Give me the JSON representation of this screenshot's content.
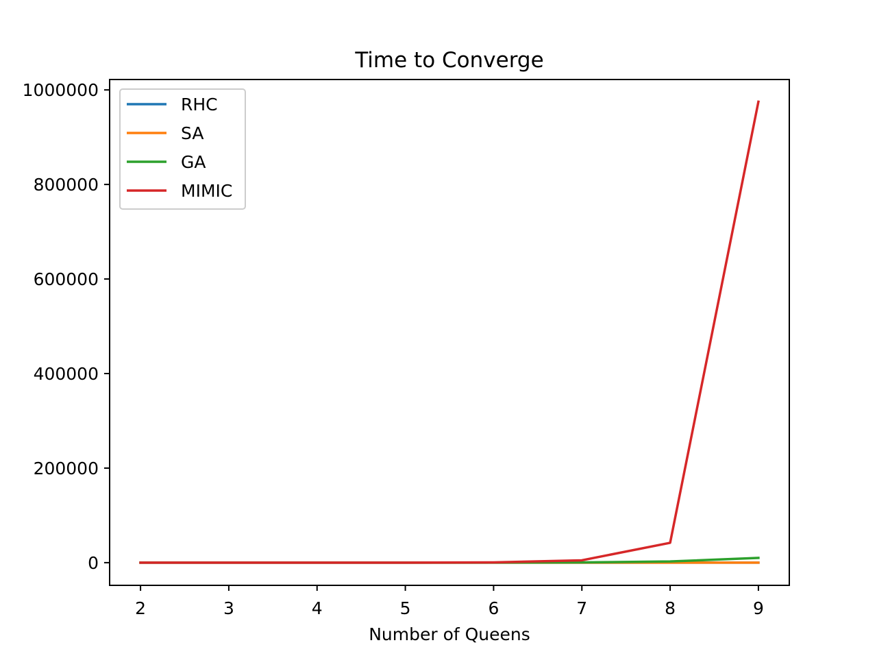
{
  "chart_data": {
    "type": "line",
    "title": "Time to Converge",
    "xlabel": "Number of Queens",
    "ylabel": "",
    "x": [
      2,
      3,
      4,
      5,
      6,
      7,
      8,
      9
    ],
    "xticks": [
      2,
      3,
      4,
      5,
      6,
      7,
      8,
      9
    ],
    "xtick_labels": [
      "2",
      "3",
      "4",
      "5",
      "6",
      "7",
      "8",
      "9"
    ],
    "yticks": [
      0,
      200000,
      400000,
      600000,
      800000,
      1000000
    ],
    "ytick_labels": [
      "0",
      "200000",
      "400000",
      "600000",
      "800000",
      "1000000"
    ],
    "xlim": [
      1.65,
      9.35
    ],
    "ylim": [
      -48000,
      1022000
    ],
    "grid": false,
    "legend_position": "upper-left",
    "series": [
      {
        "name": "RHC",
        "color": "#1f77b4",
        "values": [
          0,
          0,
          0,
          0,
          0,
          0,
          0,
          0
        ]
      },
      {
        "name": "SA",
        "color": "#ff7f0e",
        "values": [
          0,
          0,
          0,
          0,
          0,
          0,
          0,
          0
        ]
      },
      {
        "name": "GA",
        "color": "#2ca02c",
        "values": [
          0,
          0,
          0,
          0,
          200,
          600,
          2500,
          10000
        ]
      },
      {
        "name": "MIMIC",
        "color": "#d62728",
        "values": [
          0,
          0,
          0,
          0,
          500,
          5000,
          42000,
          975000
        ]
      }
    ]
  }
}
